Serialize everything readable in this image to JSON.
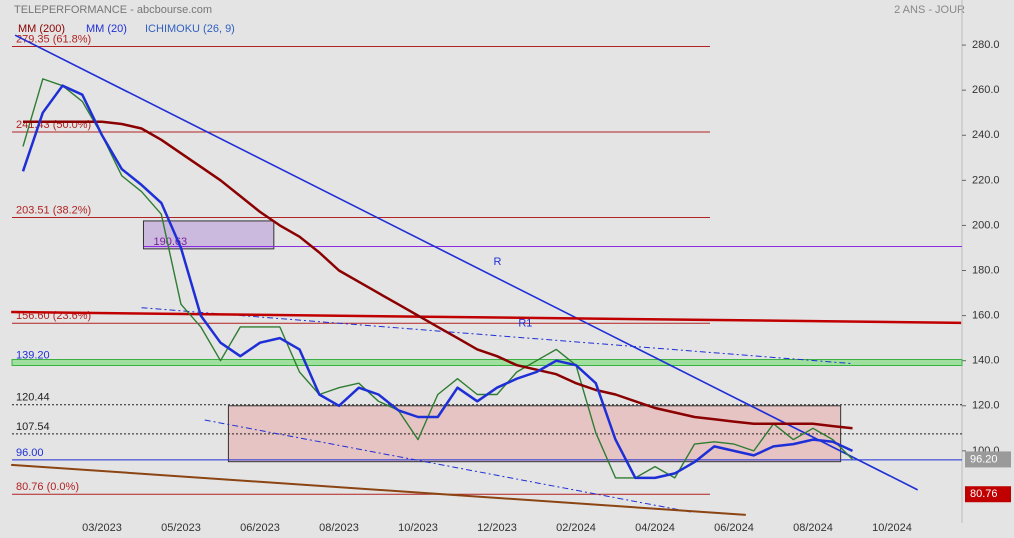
{
  "chart_data": {
    "type": "line",
    "title": "TELEPERFORMANCE - abcbourse.com",
    "subtitle": "2 ANS - JOUR",
    "indicator_label": "ICHIMOKU (26, 9)",
    "categories": [
      null,
      null,
      null,
      null,
      "03/2023",
      null,
      null,
      null,
      "05/2023",
      null,
      null,
      null,
      "06/2023",
      null,
      null,
      null,
      "08/2023",
      null,
      null,
      null,
      "10/2023",
      null,
      null,
      null,
      "12/2023",
      null,
      null,
      null,
      "02/2024",
      null,
      null,
      null,
      "04/2024",
      null,
      null,
      null,
      "06/2024",
      null,
      null,
      null,
      "08/2024",
      null,
      null,
      null,
      "10/2024",
      null,
      null,
      null
    ],
    "price": {
      "color": "#2e7d32",
      "values": [
        235,
        265,
        262,
        255,
        240,
        222,
        215,
        205,
        165,
        155,
        140,
        155,
        155,
        155,
        135,
        125,
        128,
        130,
        122,
        118,
        105,
        125,
        132,
        125,
        125,
        135,
        140,
        145,
        138,
        108,
        88,
        88,
        93,
        88,
        103,
        104,
        103,
        100,
        112,
        105,
        110,
        105,
        96.2,
        null,
        null,
        null,
        null,
        null
      ]
    },
    "series": [
      {
        "name": "MM (200)",
        "color": "#8b0000",
        "values": [
          246,
          246,
          246,
          246,
          246,
          245,
          243,
          238,
          232,
          226,
          220,
          213,
          206,
          200,
          195,
          188,
          180,
          175,
          170,
          165,
          160,
          155,
          150,
          145,
          142,
          138,
          136,
          134,
          130,
          127,
          125,
          122,
          119,
          117,
          115,
          114,
          113,
          112,
          112,
          112,
          112,
          111,
          110,
          null,
          null,
          null,
          null,
          null
        ]
      },
      {
        "name": "MM (20)",
        "color": "#1f2fd6",
        "values": [
          224,
          250,
          262,
          258,
          240,
          225,
          218,
          210,
          190,
          160,
          148,
          142,
          148,
          150,
          145,
          125,
          120,
          128,
          125,
          118,
          115,
          115,
          128,
          122,
          128,
          132,
          135,
          140,
          138,
          130,
          105,
          88,
          88,
          90,
          95,
          102,
          100,
          98,
          102,
          103,
          105,
          104,
          100,
          null,
          null,
          null,
          null,
          null
        ]
      }
    ],
    "ylim": [
      68,
      300
    ],
    "yticks": [
      {
        "value": 100,
        "label": "100.0"
      },
      {
        "value": 120,
        "label": "120.0"
      },
      {
        "value": 140,
        "label": "140.0"
      },
      {
        "value": 160,
        "label": "160.0"
      },
      {
        "value": 180,
        "label": "180.0"
      },
      {
        "value": 200,
        "label": "200.0"
      },
      {
        "value": 220,
        "label": "220.0"
      },
      {
        "value": 240,
        "label": "240.0"
      },
      {
        "value": 260,
        "label": "260.0"
      },
      {
        "value": 280,
        "label": "280.0"
      }
    ],
    "grid": false,
    "levels": [
      {
        "value": 279.35,
        "label": "279.35 (61.8%)",
        "color": "#b22222",
        "style": "solid"
      },
      {
        "value": 241.43,
        "label": "241.43 (50.0%)",
        "color": "#b22222",
        "style": "solid"
      },
      {
        "value": 203.51,
        "label": "203.51 (38.2%)",
        "color": "#b22222",
        "style": "solid"
      },
      {
        "value": 156.6,
        "label": "156.60 (23.6%)",
        "color": "#b22222",
        "style": "solid"
      },
      {
        "value": 139.2,
        "label": "139.20",
        "color": "#3cb043",
        "style": "band"
      },
      {
        "value": 120.44,
        "label": "120.44",
        "color": "#222222",
        "style": "dotted"
      },
      {
        "value": 107.54,
        "label": "107.54",
        "color": "#222222",
        "style": "dotted"
      },
      {
        "value": 96,
        "label": "96.00",
        "color": "#1f2fd6",
        "style": "solid"
      },
      {
        "value": 80.76,
        "label": "80.76 (0.0%)",
        "color": "#b22222",
        "style": "solid"
      }
    ],
    "zones": [
      {
        "x": [
          6.1,
          12.7
        ],
        "y": [
          189.6,
          202
        ],
        "color": "#b48fd8",
        "label": "190.63",
        "line_value": 190.63
      },
      {
        "x": [
          10.4,
          41.4
        ],
        "y": [
          95.2,
          120
        ],
        "color": "#e8a3a3"
      }
    ],
    "trendlines": [
      {
        "label": "R",
        "color": "#1f2fd6",
        "x": [
          -0.4,
          45.3
        ],
        "y": [
          284.4,
          82.7
        ],
        "dash": "none",
        "width": 1.6
      },
      {
        "label": "R1",
        "color": "#1f2fd6",
        "x": [
          6,
          42
        ],
        "y": [
          163.5,
          138.7
        ],
        "dash": "6 3 2 3",
        "width": 1
      },
      {
        "color": "#c00000",
        "x": [
          -0.6,
          47.5
        ],
        "y": [
          161.6,
          156.8
        ],
        "dash": "none",
        "width": 2.5
      },
      {
        "color": "#1f2fd6",
        "x": [
          9.2,
          33.8
        ],
        "y": [
          113.7,
          72.9
        ],
        "dash": "6 3 2 3",
        "width": 1
      },
      {
        "color": "#8b4513",
        "x": [
          -0.6,
          36.6
        ],
        "y": [
          93.8,
          71.6
        ],
        "dash": "none",
        "width": 2
      }
    ],
    "price_tags": [
      {
        "value": 96.2,
        "label": "96.20",
        "color": "#9a9a9a"
      },
      {
        "value": 80.76,
        "label": "80.76",
        "color": "#c00000"
      }
    ]
  }
}
